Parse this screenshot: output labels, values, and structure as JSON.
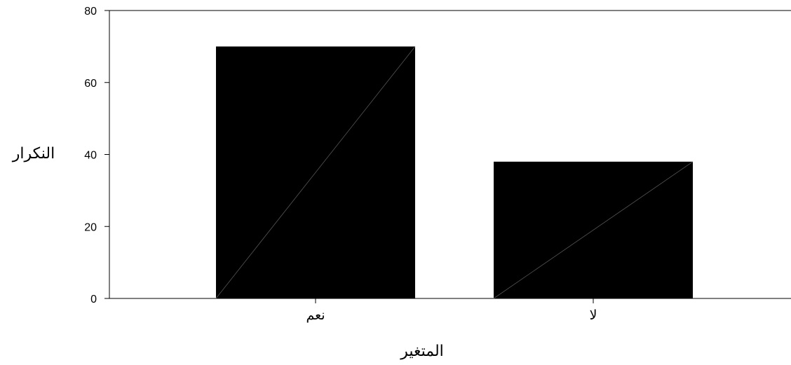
{
  "chart_data": {
    "type": "bar",
    "categories": [
      "نعم",
      "لا"
    ],
    "values": [
      70,
      38
    ],
    "xlabel": "المتغير",
    "ylabel": "النكرار",
    "ylim": [
      0,
      80
    ],
    "yticks": [
      0,
      20,
      40,
      60,
      80
    ],
    "grid": false,
    "bar_color": "#000000"
  }
}
